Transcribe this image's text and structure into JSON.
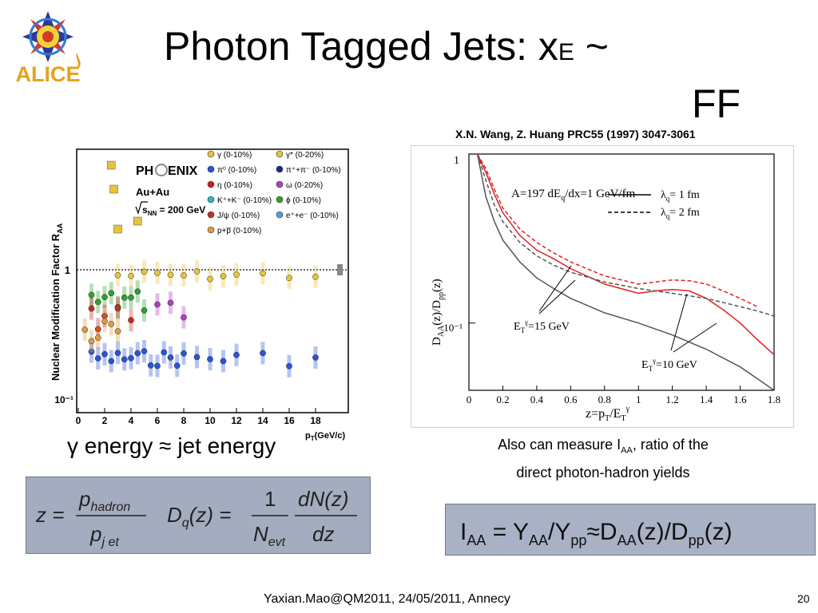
{
  "logo": {
    "text": "ALICE"
  },
  "title": {
    "main": "Photon Tagged Jets: x",
    "sub": "E",
    "tail": "  ~",
    "line2": "FF"
  },
  "reference": "X.N. Wang,  Z. Huang PRC55 (1997) 3047-3061",
  "left_plot": {
    "experiment": "PH",
    "experiment2": "ENIX",
    "system": "Au+Au",
    "energy": "s",
    "energy_sub": "NN",
    "energy_val": " = 200 GeV",
    "ylabel": "Nuclear Modification Factor  R",
    "ylabel_sub": "AA",
    "xlabel": "p",
    "xlabel_sub": "T",
    "xlabel_unit": "(GeV/c)",
    "y_ticks": [
      "1",
      "10⁻¹"
    ],
    "x_ticks": [
      "0",
      "2",
      "4",
      "6",
      "8",
      "10",
      "12",
      "14",
      "16",
      "18"
    ],
    "legend": [
      {
        "label": "γ (0-10%)",
        "color": "#e6c43c"
      },
      {
        "label": "γ* (0-20%)",
        "color": "#e6c43c"
      },
      {
        "label": "π⁰ (0-10%)",
        "color": "#2a55d6"
      },
      {
        "label": "π⁺+π⁻ (0-10%)",
        "color": "#1a2a8a"
      },
      {
        "label": "η (0-10%)",
        "color": "#c82020"
      },
      {
        "label": "ω (0-20%)",
        "color": "#b040c0"
      },
      {
        "label": "K⁺+K⁻ (0-10%)",
        "color": "#30b8c8"
      },
      {
        "label": "ϕ (0-10%)",
        "color": "#30a030"
      },
      {
        "label": "J/ψ (0-10%)",
        "color": "#c03020"
      },
      {
        "label": "e⁺+e⁻ (0-10%)",
        "color": "#50a0e0"
      },
      {
        "label": "p+p̅ (0-10%)",
        "color": "#e09a40"
      }
    ]
  },
  "chart_data": {
    "type": "line",
    "title": "A=197  dE",
    "title_sub": "q",
    "title_tail": "/dx=1 GeV/fm",
    "xlabel": "z=p",
    "ylabel": "D",
    "xlim": [
      0,
      1.8
    ],
    "ylim": [
      0.04,
      1
    ],
    "log_y": true,
    "x_ticks": [
      "0",
      "0.2",
      "0.4",
      "0.6",
      "0.8",
      "1",
      "1.2",
      "1.4",
      "1.6",
      "1.8"
    ],
    "y_ticks": [
      "1",
      "10⁻¹"
    ],
    "legend": [
      {
        "label": "λ",
        "sub": "q",
        "tail": "= 1 fm",
        "style": "solid"
      },
      {
        "label": "λ",
        "sub": "q",
        "tail": "= 2 fm",
        "style": "dashed"
      }
    ],
    "annotations": [
      "E",
      "=15 GeV",
      "E",
      "=10 GeV"
    ],
    "series": [
      {
        "style": "solid",
        "color": "#555555",
        "x": [
          0.05,
          0.1,
          0.15,
          0.2,
          0.3,
          0.4,
          0.5,
          0.6,
          0.8,
          1.0,
          1.2,
          1.4,
          1.6,
          1.7,
          1.8
        ],
        "y": [
          1.0,
          0.56,
          0.4,
          0.31,
          0.23,
          0.185,
          0.16,
          0.14,
          0.115,
          0.1,
          0.085,
          0.07,
          0.055,
          0.047,
          0.04
        ]
      },
      {
        "style": "solid",
        "color": "#e02020",
        "x": [
          0.05,
          0.1,
          0.15,
          0.2,
          0.3,
          0.4,
          0.5,
          0.6,
          0.8,
          1.0,
          1.1,
          1.2,
          1.3,
          1.4,
          1.5,
          1.6,
          1.7,
          1.8
        ],
        "y": [
          1.0,
          0.78,
          0.58,
          0.45,
          0.33,
          0.27,
          0.24,
          0.21,
          0.17,
          0.15,
          0.155,
          0.158,
          0.155,
          0.14,
          0.12,
          0.1,
          0.08,
          0.065
        ]
      },
      {
        "style": "dashed",
        "color": "#e02020",
        "x": [
          0.05,
          0.1,
          0.15,
          0.2,
          0.3,
          0.4,
          0.5,
          0.6,
          0.8,
          1.0,
          1.1,
          1.2,
          1.3,
          1.4,
          1.5,
          1.6,
          1.7
        ],
        "y": [
          1.0,
          0.82,
          0.62,
          0.48,
          0.36,
          0.3,
          0.26,
          0.23,
          0.19,
          0.17,
          0.175,
          0.18,
          0.178,
          0.17,
          0.155,
          0.14,
          0.125
        ]
      },
      {
        "style": "dashed",
        "color": "#555555",
        "x": [
          0.05,
          0.1,
          0.15,
          0.2,
          0.3,
          0.4,
          0.5,
          0.6,
          0.8,
          1.0,
          1.2,
          1.4,
          1.6,
          1.7,
          1.8
        ],
        "y": [
          1.0,
          0.7,
          0.5,
          0.4,
          0.3,
          0.25,
          0.22,
          0.2,
          0.175,
          0.16,
          0.15,
          0.14,
          0.125,
          0.118,
          0.11
        ]
      }
    ]
  },
  "right_plot": {
    "xlabel_sub": "T",
    "xlabel_frac": "/E",
    "xlabel_sup": "γ",
    "ylabel_sub": "AA",
    "ylabel_mid": "(z)/D",
    "ylabel_sub2": "pp",
    "ylabel_tail": "(z)",
    "ann_sub": "T",
    "ann_sup": "γ"
  },
  "gamma_caption": "γ energy ≈ jet energy",
  "iaa_caption": {
    "line1a": "Also can measure I",
    "sub": "AA",
    "line1b": ", ratio of the",
    "line2": "direct photon-hadron yields"
  },
  "formula_left": {
    "z": "z =",
    "num": "p",
    "num_sub": "hadron",
    "den": "p",
    "den_sub": "j et",
    "dq": "D",
    "dq_sub": "q",
    "dq_arg": "(z) =",
    "one": "1",
    "nevt": "N",
    "nevt_sub": "evt",
    "dn": "dN(z)",
    "dz": "dz"
  },
  "formula_right": {
    "i": "I",
    "i_sub": "AA",
    "eq": " = Y",
    "y1_sub": "AA",
    "slash": "/Y",
    "y2_sub": "pp",
    "approx": "≈D",
    "d1_sub": "AA",
    "mid": "(z)/D",
    "d2_sub": "pp",
    "end": "(z)"
  },
  "footer": "Yaxian.Mao@QM2011, 24/05/2011, Annecy",
  "page_number": "20"
}
